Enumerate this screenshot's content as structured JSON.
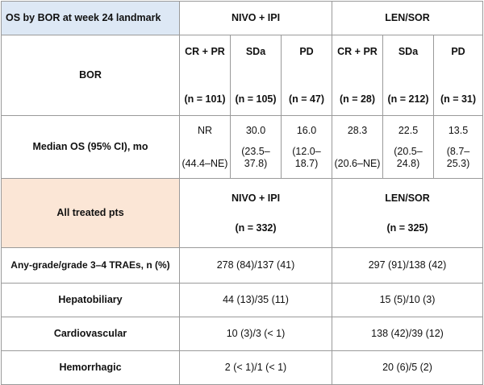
{
  "header": {
    "title": "OS by BOR at week 24 landmark",
    "arm1": "NIVO + IPI",
    "arm2": "LEN/SOR"
  },
  "bor_row": {
    "label": "BOR",
    "groups": [
      {
        "name": "CR + PR",
        "n": "(n = 101)"
      },
      {
        "name": "SDa",
        "n": "(n = 105)"
      },
      {
        "name": "PD",
        "n": "(n = 47)"
      },
      {
        "name": "CR + PR",
        "n": "(n = 28)"
      },
      {
        "name": "SDa",
        "n": "(n = 212)"
      },
      {
        "name": "PD",
        "n": "(n = 31)"
      }
    ]
  },
  "os_row": {
    "label": "Median OS (95% CI), mo",
    "values": [
      {
        "median": "NR",
        "ci": "(44.4–NE)"
      },
      {
        "median": "30.0",
        "ci": "(23.5–37.8)"
      },
      {
        "median": "16.0",
        "ci": "(12.0–18.7)"
      },
      {
        "median": "28.3",
        "ci": "(20.6–NE)"
      },
      {
        "median": "22.5",
        "ci": "(20.5–24.8)"
      },
      {
        "median": "13.5",
        "ci": "(8.7–25.3)"
      }
    ]
  },
  "all_treated": {
    "label": "All treated pts",
    "arm1": "NIVO + IPI",
    "arm1_n": "(n = 332)",
    "arm2": "LEN/SOR",
    "arm2_n": "(n = 325)"
  },
  "traes": [
    {
      "label": "Any-grade/grade 3–4 TRAEs, n (%)",
      "arm1": "278 (84)/137 (41)",
      "arm2": "297 (91)/138 (42)"
    },
    {
      "label": "Hepatobiliary",
      "arm1": "44 (13)/35 (11)",
      "arm2": "15 (5)/10 (3)"
    },
    {
      "label": "Cardiovascular",
      "arm1": "10 (3)/3 (< 1)",
      "arm2": "138 (42)/39 (12)"
    },
    {
      "label": "Hemorrhagic",
      "arm1": "2 (< 1)/1 (< 1)",
      "arm2": "20 (6)/5 (2)"
    }
  ],
  "colors": {
    "header_fill": "#dde8f5",
    "all_treated_fill": "#fbe6d6",
    "border": "#9a9a9a"
  }
}
